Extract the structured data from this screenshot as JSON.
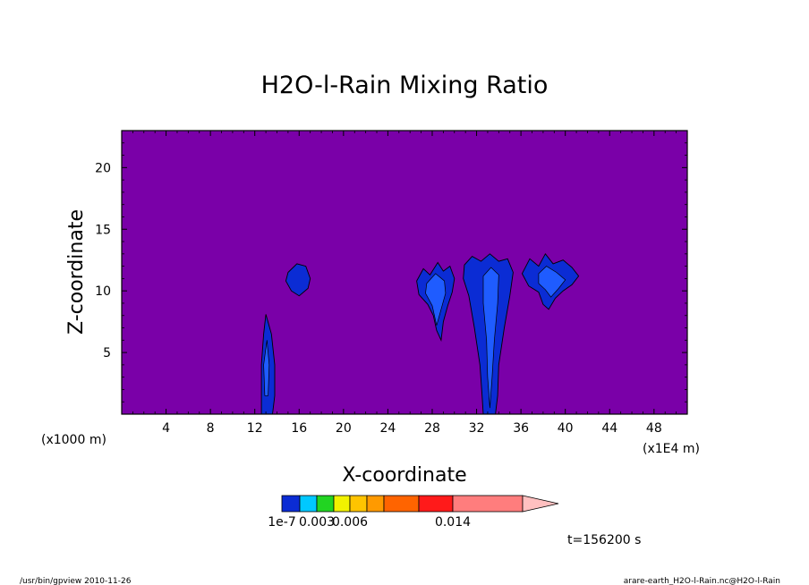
{
  "chart_data": {
    "type": "contour",
    "title": "H2O-l-Rain Mixing Ratio",
    "xlabel": "X-coordinate",
    "ylabel": "Z-coordinate",
    "x_unit_left": "(x1000 m)",
    "x_unit_right": "(x1E4 m)",
    "xlim": [
      0,
      51
    ],
    "ylim": [
      0,
      23
    ],
    "x_ticks": [
      4,
      8,
      12,
      16,
      20,
      24,
      28,
      32,
      36,
      40,
      44,
      48
    ],
    "y_ticks": [
      5,
      10,
      15,
      20
    ],
    "background_color": "#7a00a8",
    "colorbar": {
      "colors": [
        "#0b2cd4",
        "#00c8ff",
        "#22d422",
        "#f2f200",
        "#ffc400",
        "#ff9a00",
        "#ff6400",
        "#ff1a1a",
        "#ff7d7d",
        "#ffc0c0"
      ],
      "labels": [
        {
          "text": "1e-7",
          "level_index": 0
        },
        {
          "text": "0.003",
          "level_index": 2
        },
        {
          "text": "0.006",
          "level_index": 4
        },
        {
          "text": "0.014",
          "level_index": 8
        }
      ]
    },
    "cells": [
      {
        "name": "cell-x13",
        "outer": [
          [
            13.0,
            8.1
          ],
          [
            13.5,
            6.5
          ],
          [
            13.8,
            4.0
          ],
          [
            13.8,
            1.5
          ],
          [
            13.6,
            0.0
          ],
          [
            12.6,
            0.0
          ],
          [
            12.6,
            1.5
          ],
          [
            12.6,
            4.0
          ],
          [
            12.8,
            6.5
          ]
        ],
        "inner": [
          [
            13.1,
            6.0
          ],
          [
            13.3,
            4.0
          ],
          [
            13.2,
            1.5
          ],
          [
            12.9,
            1.5
          ],
          [
            12.8,
            4.0
          ]
        ]
      },
      {
        "name": "cell-x16",
        "outer": [
          [
            15.0,
            11.5
          ],
          [
            15.8,
            12.2
          ],
          [
            16.6,
            12.0
          ],
          [
            17.0,
            11.0
          ],
          [
            16.8,
            10.2
          ],
          [
            16.0,
            9.6
          ],
          [
            15.3,
            10.0
          ],
          [
            14.8,
            10.8
          ]
        ]
      },
      {
        "name": "cell-x28",
        "outer": [
          [
            26.6,
            10.8
          ],
          [
            27.2,
            11.8
          ],
          [
            27.8,
            11.3
          ],
          [
            28.5,
            12.3
          ],
          [
            29.0,
            11.6
          ],
          [
            29.6,
            12.0
          ],
          [
            30.0,
            11.0
          ],
          [
            29.8,
            9.9
          ],
          [
            29.4,
            8.8
          ],
          [
            29.0,
            7.5
          ],
          [
            28.8,
            6.0
          ],
          [
            28.4,
            6.8
          ],
          [
            28.1,
            8.0
          ],
          [
            27.6,
            8.9
          ],
          [
            26.8,
            9.7
          ]
        ],
        "inner": [
          [
            27.5,
            10.6
          ],
          [
            28.3,
            11.4
          ],
          [
            29.1,
            10.8
          ],
          [
            29.2,
            9.8
          ],
          [
            28.8,
            8.5
          ],
          [
            28.4,
            7.2
          ],
          [
            28.0,
            8.8
          ],
          [
            27.4,
            9.8
          ]
        ]
      },
      {
        "name": "cell-x33",
        "outer": [
          [
            30.9,
            12.1
          ],
          [
            31.6,
            12.8
          ],
          [
            32.4,
            12.4
          ],
          [
            33.2,
            13.0
          ],
          [
            34.0,
            12.4
          ],
          [
            34.8,
            12.6
          ],
          [
            35.3,
            11.5
          ],
          [
            35.0,
            9.6
          ],
          [
            34.5,
            7.0
          ],
          [
            34.0,
            4.0
          ],
          [
            33.9,
            1.5
          ],
          [
            33.7,
            0.0
          ],
          [
            32.6,
            0.0
          ],
          [
            32.5,
            1.5
          ],
          [
            32.3,
            4.0
          ],
          [
            31.8,
            7.0
          ],
          [
            31.3,
            9.6
          ],
          [
            30.8,
            11.0
          ]
        ],
        "inner": [
          [
            32.6,
            11.2
          ],
          [
            33.3,
            11.9
          ],
          [
            34.0,
            11.3
          ],
          [
            33.9,
            9.0
          ],
          [
            33.6,
            6.0
          ],
          [
            33.4,
            3.0
          ],
          [
            33.2,
            0.5
          ],
          [
            33.0,
            3.0
          ],
          [
            32.9,
            6.0
          ],
          [
            32.6,
            9.0
          ]
        ]
      },
      {
        "name": "cell-x38",
        "outer": [
          [
            36.1,
            11.4
          ],
          [
            36.8,
            12.6
          ],
          [
            37.6,
            12.0
          ],
          [
            38.2,
            13.0
          ],
          [
            38.9,
            12.2
          ],
          [
            39.8,
            12.5
          ],
          [
            40.6,
            11.9
          ],
          [
            41.2,
            11.2
          ],
          [
            40.6,
            10.5
          ],
          [
            39.8,
            10.0
          ],
          [
            39.1,
            9.4
          ],
          [
            38.5,
            8.5
          ],
          [
            38.0,
            8.9
          ],
          [
            37.6,
            9.9
          ],
          [
            36.7,
            10.4
          ]
        ],
        "inner": [
          [
            37.6,
            11.4
          ],
          [
            38.3,
            12.0
          ],
          [
            39.2,
            11.5
          ],
          [
            40.0,
            10.9
          ],
          [
            39.4,
            10.2
          ],
          [
            38.7,
            9.5
          ],
          [
            38.2,
            10.1
          ],
          [
            37.6,
            10.6
          ]
        ]
      }
    ]
  },
  "annotations": {
    "time": "t=156200 s",
    "footer_left": "/usr/bin/gpview  2010-11-26",
    "footer_right": "arare-earth_H2O-l-Rain.nc@H2O-l-Rain"
  }
}
